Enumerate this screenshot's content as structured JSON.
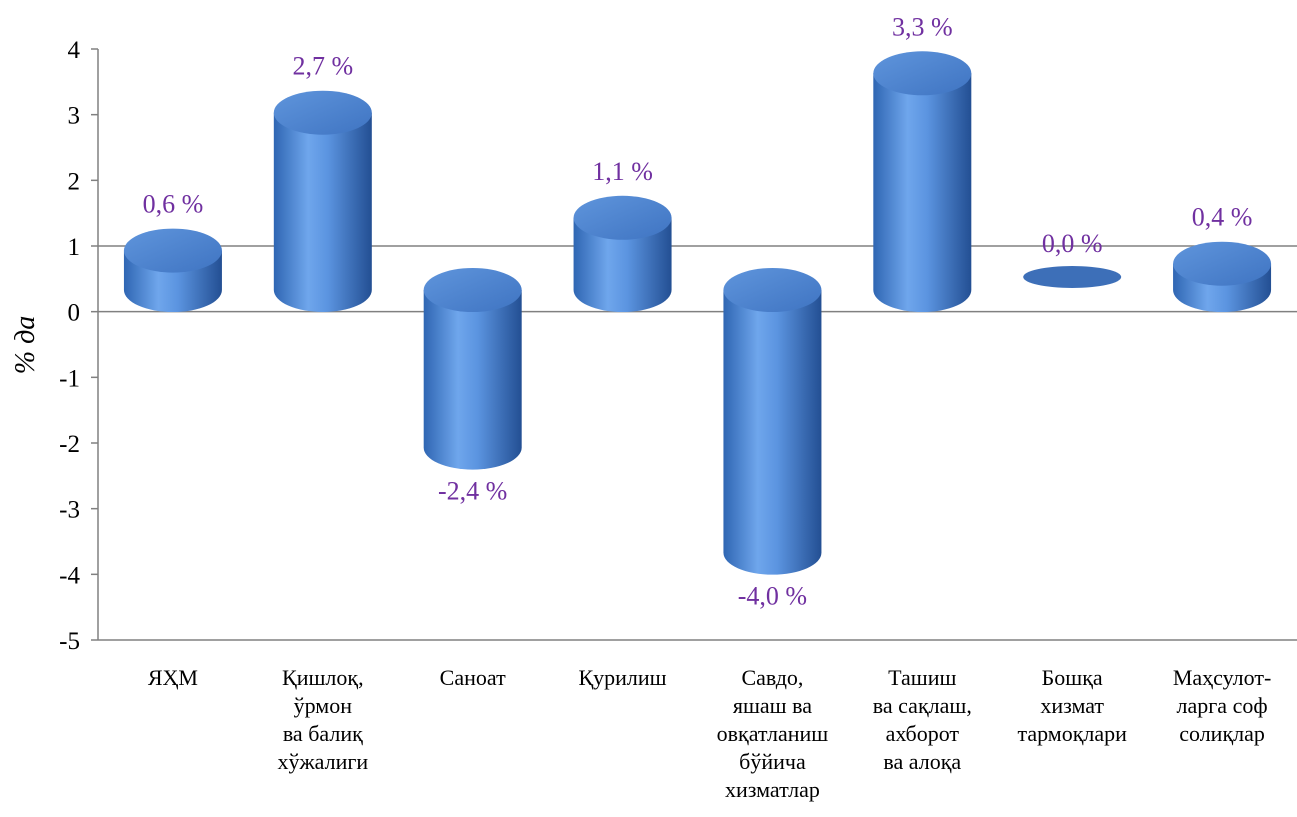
{
  "chart_data": {
    "type": "bar",
    "style": "3d-cylinder",
    "ylabel": "% да",
    "xlabel": "",
    "ylim": [
      -5,
      4
    ],
    "yticks": [
      "4",
      "3",
      "2",
      "1",
      "0",
      "-1",
      "-2",
      "-3",
      "-4",
      "-5"
    ],
    "grid": false,
    "bar_color": "#4a86d8",
    "label_color": "#7030a0",
    "categories": [
      [
        "ЯҲМ"
      ],
      [
        "Қишлоқ,",
        "ўрмон",
        "ва балиқ",
        "хўжалиги"
      ],
      [
        "Саноат"
      ],
      [
        "Қурилиш"
      ],
      [
        "Савдо,",
        "яшаш ва",
        "овқатланиш",
        "бўйича",
        "хизматлар"
      ],
      [
        "Ташиш",
        "ва сақлаш,",
        "ахборот",
        "ва алоқа"
      ],
      [
        "Бошқа",
        "хизмат",
        "тармоқлари"
      ],
      [
        "Маҳсулот-",
        "ларга соф",
        "солиқлар"
      ]
    ],
    "values": [
      0.6,
      2.7,
      -2.4,
      1.1,
      -4.0,
      3.3,
      0.0,
      0.4
    ],
    "value_labels": [
      "0,6 %",
      "2,7 %",
      "-2,4 %",
      "1,1 %",
      "-4,0 %",
      "3,3 %",
      "0,0 %",
      "0,4 %"
    ]
  }
}
